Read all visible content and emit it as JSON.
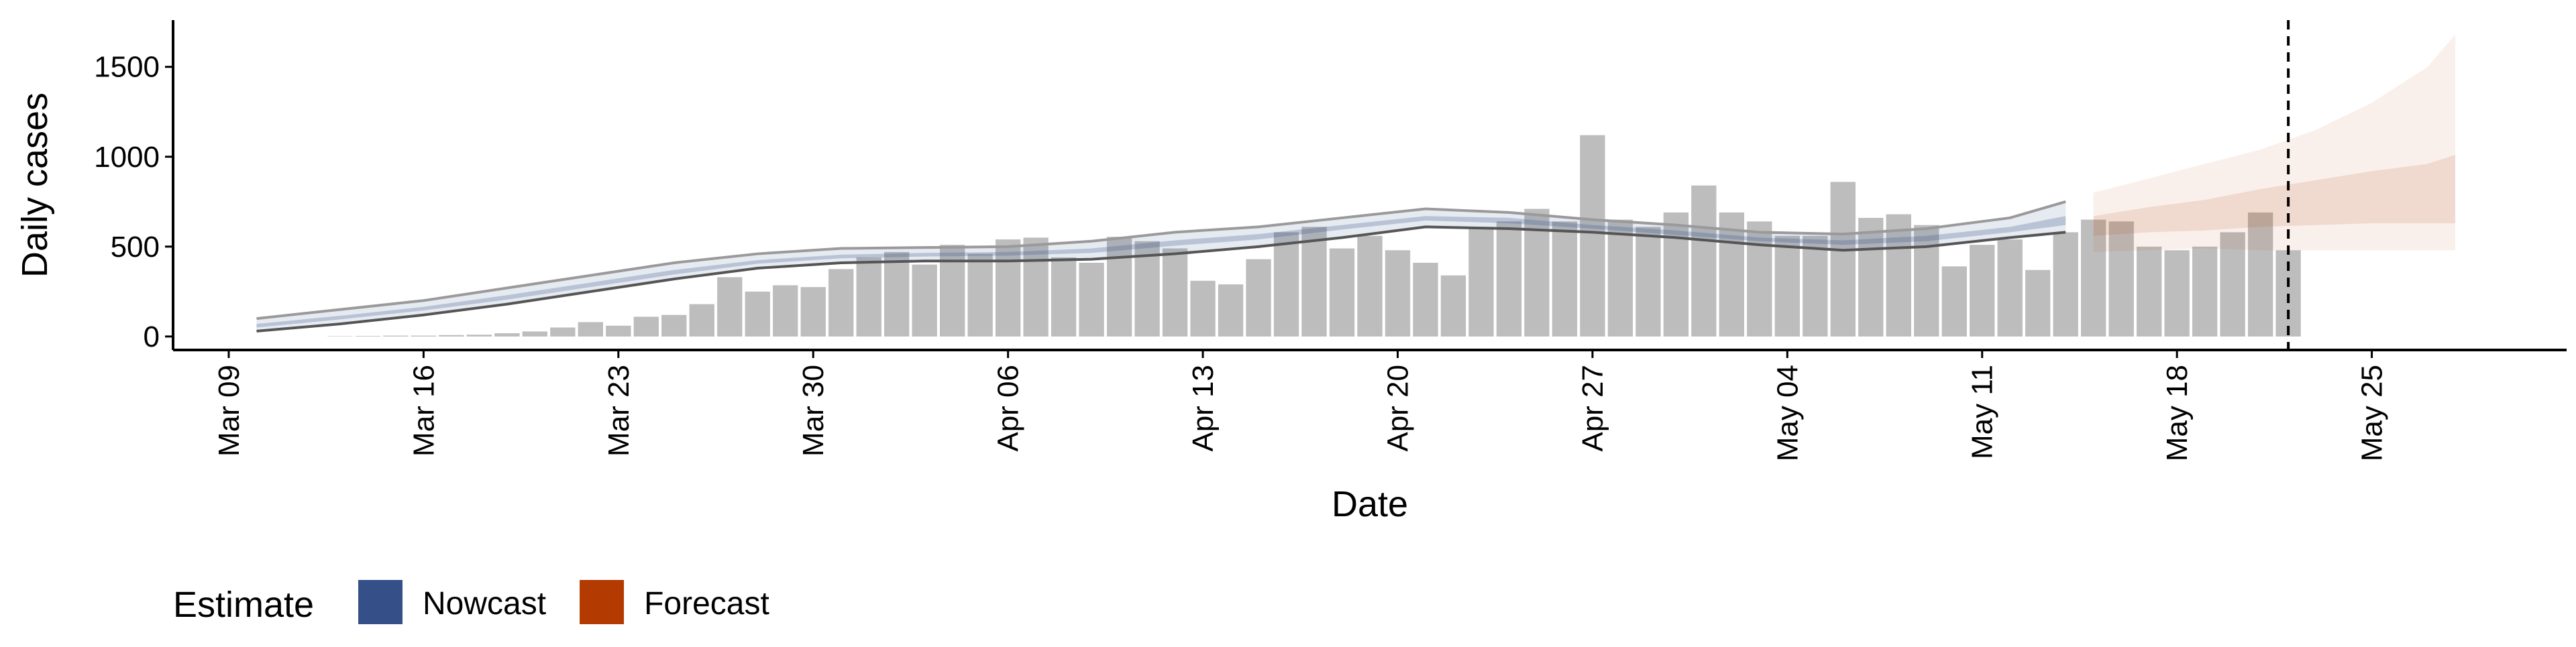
{
  "chart_data": {
    "type": "bar",
    "x_label": "Date",
    "y_label": "Daily cases",
    "categories": [
      "Mar 13",
      "Mar 14",
      "Mar 15",
      "Mar 16",
      "Mar 17",
      "Mar 18",
      "Mar 19",
      "Mar 20",
      "Mar 21",
      "Mar 22",
      "Mar 23",
      "Mar 24",
      "Mar 25",
      "Mar 26",
      "Mar 27",
      "Mar 28",
      "Mar 29",
      "Mar 30",
      "Mar 31",
      "Apr 01",
      "Apr 02",
      "Apr 03",
      "Apr 04",
      "Apr 05",
      "Apr 06",
      "Apr 07",
      "Apr 08",
      "Apr 09",
      "Apr 10",
      "Apr 11",
      "Apr 12",
      "Apr 13",
      "Apr 14",
      "Apr 15",
      "Apr 16",
      "Apr 17",
      "Apr 18",
      "Apr 19",
      "Apr 20",
      "Apr 21",
      "Apr 22",
      "Apr 23",
      "Apr 24",
      "Apr 25",
      "Apr 26",
      "Apr 27",
      "Apr 28",
      "Apr 29",
      "Apr 30",
      "May 01",
      "May 02",
      "May 03",
      "May 04",
      "May 05",
      "May 06",
      "May 07",
      "May 08",
      "May 09",
      "May 10",
      "May 11",
      "May 12",
      "May 13",
      "May 14",
      "May 15",
      "May 16",
      "May 17",
      "May 18",
      "May 19",
      "May 20",
      "May 21",
      "May 22"
    ],
    "values": [
      2,
      3,
      5,
      5,
      8,
      10,
      18,
      28,
      50,
      80,
      60,
      110,
      120,
      180,
      330,
      250,
      285,
      275,
      375,
      440,
      470,
      400,
      510,
      460,
      540,
      550,
      440,
      410,
      555,
      530,
      490,
      310,
      290,
      430,
      580,
      610,
      490,
      560,
      480,
      410,
      340,
      610,
      640,
      710,
      640,
      1120,
      650,
      610,
      690,
      840,
      690,
      640,
      560,
      560,
      860,
      660,
      680,
      620,
      390,
      510,
      540,
      370,
      580,
      650,
      640,
      500,
      480,
      500,
      580,
      690,
      480
    ],
    "color": "#bdbdbd",
    "legend_title": "Estimate",
    "series": [
      {
        "name": "Nowcast",
        "color": "#354f88",
        "x": [
          "Mar 10",
          "Mar 13",
          "Mar 16",
          "Mar 19",
          "Mar 22",
          "Mar 25",
          "Mar 28",
          "Mar 31",
          "Apr 03",
          "Apr 06",
          "Apr 09",
          "Apr 12",
          "Apr 15",
          "Apr 18",
          "Apr 21",
          "Apr 24",
          "Apr 27",
          "Apr 30",
          "May 03",
          "May 06",
          "May 09",
          "May 12",
          "May 14"
        ],
        "upper_90": [
          100,
          150,
          200,
          270,
          340,
          410,
          460,
          490,
          495,
          500,
          530,
          580,
          610,
          660,
          710,
          690,
          650,
          620,
          580,
          570,
          600,
          660,
          750
        ],
        "lower_90": [
          30,
          70,
          120,
          180,
          250,
          320,
          380,
          410,
          420,
          420,
          430,
          460,
          500,
          550,
          610,
          600,
          580,
          550,
          510,
          480,
          500,
          550,
          580
        ],
        "upper_50": [
          70,
          115,
          165,
          230,
          300,
          370,
          425,
          455,
          465,
          470,
          490,
          535,
          570,
          620,
          670,
          660,
          620,
          590,
          550,
          535,
          560,
          610,
          670
        ],
        "lower_50": [
          50,
          95,
          145,
          205,
          275,
          345,
          405,
          435,
          445,
          450,
          465,
          505,
          540,
          595,
          645,
          630,
          600,
          565,
          530,
          510,
          530,
          580,
          620
        ]
      },
      {
        "name": "Forecast",
        "color": "#b33a00",
        "x": [
          "May 15",
          "May 17",
          "May 19",
          "May 21",
          "May 23",
          "May 25",
          "May 27",
          "May 28"
        ],
        "upper_90": [
          800,
          880,
          960,
          1040,
          1150,
          1300,
          1500,
          1680
        ],
        "lower_90": [
          470,
          480,
          490,
          480,
          480,
          480,
          480,
          480
        ],
        "upper_50": [
          670,
          720,
          760,
          820,
          870,
          920,
          960,
          1010
        ],
        "lower_50": [
          560,
          580,
          590,
          610,
          620,
          630,
          630,
          630
        ]
      }
    ],
    "marker_date": "May 22",
    "xlim": [
      "Mar 07",
      "Jun 01"
    ],
    "xticks": [
      "Mar 09",
      "Mar 16",
      "Mar 23",
      "Mar 30",
      "Apr 06",
      "Apr 13",
      "Apr 20",
      "Apr 27",
      "May 04",
      "May 11",
      "May 18",
      "May 25"
    ],
    "ylim": [
      -75,
      1760
    ],
    "yticks": [
      0,
      500,
      1000,
      1500
    ]
  }
}
